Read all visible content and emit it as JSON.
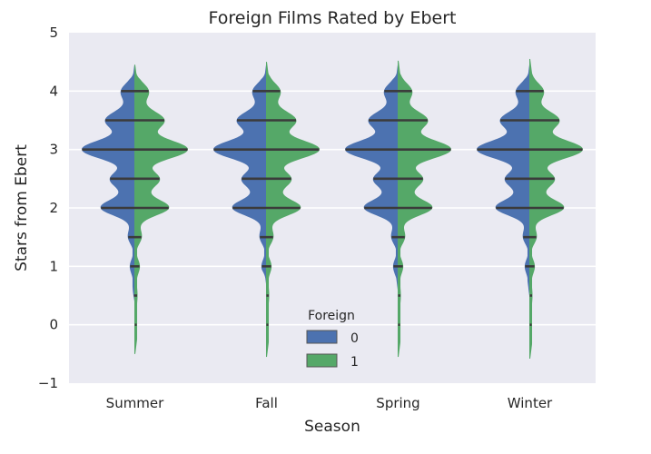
{
  "colors": {
    "background": "#eaeaf2",
    "grid": "#ffffff",
    "foreign_0": "#4c72b0",
    "foreign_1": "#55a868",
    "quartile_line": "#3b3b3b"
  },
  "chart_data": {
    "type": "violin",
    "title": "Foreign Films Rated by Ebert",
    "xlabel": "Season",
    "ylabel": "Stars from Ebert",
    "categories": [
      "Summer",
      "Fall",
      "Spring",
      "Winter"
    ],
    "ylim": [
      -1,
      5
    ],
    "yticks": [
      -1,
      0,
      1,
      2,
      3,
      4,
      5
    ],
    "grid": true,
    "split": true,
    "inner": "stick",
    "legend": {
      "title": "Foreign",
      "position": "lower center",
      "entries": [
        "0",
        "1"
      ]
    },
    "series": [
      {
        "name": "0",
        "min": [
          0.4,
          0.7,
          0.6,
          0.5
        ],
        "max": [
          4.45,
          4.45,
          4.45,
          4.45
        ],
        "sticks": [
          [
            0.5,
            1.0,
            1.5,
            2.0,
            2.5,
            3.0,
            3.5,
            4.0
          ],
          [
            0.5,
            1.0,
            1.5,
            2.0,
            2.5,
            3.0,
            3.5,
            4.0
          ],
          [
            0.5,
            1.0,
            1.5,
            2.0,
            2.5,
            3.0,
            3.5,
            4.0
          ],
          [
            0.5,
            1.0,
            1.5,
            2.0,
            2.5,
            3.0,
            3.5,
            4.0
          ]
        ]
      },
      {
        "name": "1",
        "min": [
          -0.5,
          -0.55,
          -0.55,
          -0.58
        ],
        "max": [
          4.45,
          4.5,
          4.52,
          4.55
        ],
        "sticks": [
          [
            0.0,
            0.5,
            1.0,
            1.5,
            2.0,
            2.5,
            3.0,
            3.5,
            4.0
          ],
          [
            0.0,
            0.5,
            1.0,
            1.5,
            2.0,
            2.5,
            3.0,
            3.5,
            4.0
          ],
          [
            0.0,
            0.5,
            1.0,
            1.5,
            2.0,
            2.5,
            3.0,
            3.5,
            4.0
          ],
          [
            0.0,
            0.5,
            1.0,
            1.5,
            2.0,
            2.5,
            3.0,
            3.5,
            4.0
          ]
        ]
      }
    ]
  }
}
